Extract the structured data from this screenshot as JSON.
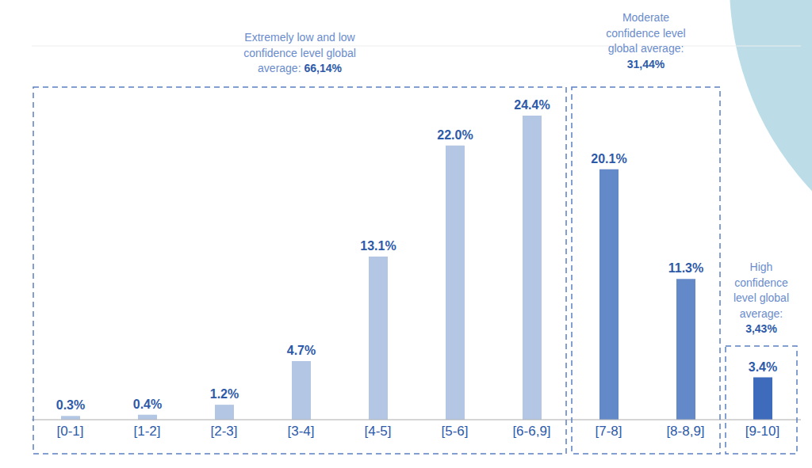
{
  "chart_data": {
    "type": "bar",
    "categories": [
      "[0-1]",
      "[1-2]",
      "[2-3]",
      "[3-4]",
      "[4-5]",
      "[5-6]",
      "[6-6,9]",
      "[7-8]",
      "[8-8,9]",
      "[9-10]"
    ],
    "values": [
      0.3,
      0.4,
      1.2,
      4.7,
      13.1,
      22.0,
      24.4,
      20.1,
      11.3,
      3.4
    ],
    "value_labels": [
      "0.3%",
      "0.4%",
      "1.2%",
      "4.7%",
      "13.1%",
      "22.0%",
      "24.4%",
      "20.1%",
      "11.3%",
      "3.4%"
    ],
    "colors": [
      "#b3c6e4",
      "#b3c6e4",
      "#b3c6e4",
      "#b3c6e4",
      "#b3c6e4",
      "#b3c6e4",
      "#b3c6e4",
      "#6489c9",
      "#6489c9",
      "#3e6bbb"
    ],
    "ylim": [
      0,
      30
    ],
    "yticks": [
      0,
      6,
      12,
      18,
      24,
      30
    ],
    "grid": true,
    "tick_labels": "x",
    "data_labels": true,
    "annotations": [
      {
        "text": [
          "Extremely low and low",
          "confidence level global",
          "average:"
        ],
        "average": "66,14%",
        "categories": [
          "[0-1]",
          "[1-2]",
          "[2-3]",
          "[3-4]",
          "[4-5]",
          "[5-6]",
          "[6-6,9]"
        ]
      },
      {
        "text": [
          "Moderate",
          "confidence level",
          "global average:"
        ],
        "average": "31,44%",
        "categories": [
          "[7-8]",
          "[8-8,9]"
        ]
      },
      {
        "text": [
          "High",
          "confidence",
          "level global",
          "average:"
        ],
        "average": "3,43%",
        "categories": [
          "[9-10]"
        ]
      }
    ]
  }
}
